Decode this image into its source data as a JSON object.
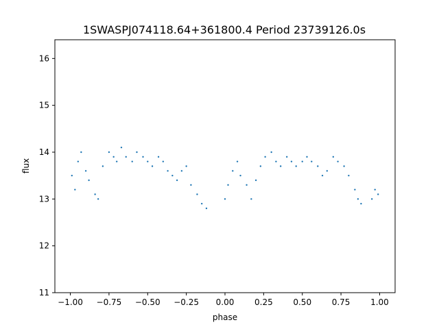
{
  "chart_data": {
    "type": "scatter",
    "title": "1SWASPJ074118.64+361800.4 Period 23739126.0s",
    "xlabel": "phase",
    "ylabel": "flux",
    "xlim": [
      -1.1,
      1.1
    ],
    "ylim": [
      11.0,
      16.4
    ],
    "xticks": [
      -1.0,
      -0.75,
      -0.5,
      -0.25,
      0.0,
      0.25,
      0.5,
      0.75,
      1.0
    ],
    "xtick_labels": [
      "−1.00",
      "−0.75",
      "−0.50",
      "−0.25",
      "0.00",
      "0.25",
      "0.50",
      "0.75",
      "1.00"
    ],
    "yticks": [
      11,
      12,
      13,
      14,
      15,
      16
    ],
    "ytick_labels": [
      "11",
      "12",
      "13",
      "14",
      "15",
      "16"
    ],
    "grid": false,
    "point_color": "#1f77b4",
    "series": [
      {
        "x": [
          -0.99,
          -0.97,
          -0.95,
          -0.93,
          -0.9,
          -0.88,
          -0.84,
          -0.82,
          -0.79,
          -0.75,
          -0.72,
          -0.7,
          -0.67,
          -0.64,
          -0.6,
          -0.57,
          -0.53,
          -0.5,
          -0.47,
          -0.43,
          -0.4,
          -0.37,
          -0.34,
          -0.31,
          -0.28,
          -0.25,
          -0.22,
          -0.18,
          -0.15,
          -0.12,
          0.0,
          0.02,
          0.05,
          0.08,
          0.1,
          0.14,
          0.17,
          0.2,
          0.23,
          0.26,
          0.3,
          0.33,
          0.36,
          0.4,
          0.43,
          0.46,
          0.5,
          0.53,
          0.56,
          0.6,
          0.63,
          0.66,
          0.7,
          0.73,
          0.77,
          0.8,
          0.84,
          0.86,
          0.88,
          0.95,
          0.97,
          0.99
        ],
        "y": [
          13.5,
          13.2,
          13.8,
          14.0,
          13.6,
          13.4,
          13.1,
          13.0,
          13.7,
          14.0,
          13.9,
          13.8,
          14.1,
          13.9,
          13.8,
          14.0,
          13.9,
          13.8,
          13.7,
          13.9,
          13.8,
          13.6,
          13.5,
          13.4,
          13.6,
          13.7,
          13.3,
          13.1,
          12.9,
          12.8,
          13.0,
          13.3,
          13.6,
          13.8,
          13.5,
          13.3,
          13.0,
          13.4,
          13.7,
          13.9,
          14.0,
          13.8,
          13.7,
          13.9,
          13.8,
          13.7,
          13.8,
          13.9,
          13.8,
          13.7,
          13.5,
          13.6,
          13.9,
          13.8,
          13.7,
          13.5,
          13.2,
          13.0,
          12.9,
          13.0,
          13.2,
          13.1
        ]
      }
    ]
  }
}
